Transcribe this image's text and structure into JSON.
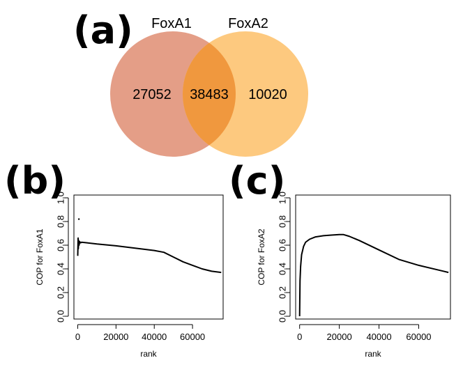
{
  "figure": {
    "panel_a_label": "(a)",
    "panel_b_label": "(b)",
    "panel_c_label": "(c)"
  },
  "chart_data": [
    {
      "type": "venn",
      "panel": "a",
      "sets": [
        {
          "name": "FoxA1",
          "only": "27052",
          "color": "#e49e87"
        },
        {
          "name": "FoxA2",
          "only": "10020",
          "color": "#fdc97f"
        }
      ],
      "intersection": "38483",
      "intersection_color": "#f0983e"
    },
    {
      "type": "line",
      "panel": "b",
      "title": "",
      "xlabel": "rank",
      "ylabel": "COP for FoxA1",
      "xlim": [
        -2000,
        76000
      ],
      "ylim": [
        0.0,
        1.0
      ],
      "xticks": [
        0,
        20000,
        40000,
        60000
      ],
      "yticks": [
        0.0,
        0.2,
        0.4,
        0.6,
        0.8,
        1.0
      ],
      "outlier_points": [
        [
          600,
          0.82
        ]
      ],
      "series": [
        {
          "name": "COP",
          "x": [
            0,
            200,
            300,
            500,
            700,
            1000,
            1500,
            2000,
            5000,
            10000,
            20000,
            30000,
            40000,
            45000,
            50000,
            55000,
            60000,
            65000,
            70000,
            75000
          ],
          "y": [
            0.51,
            0.66,
            0.57,
            0.64,
            0.6,
            0.63,
            0.62,
            0.625,
            0.62,
            0.61,
            0.595,
            0.575,
            0.555,
            0.54,
            0.5,
            0.46,
            0.43,
            0.4,
            0.38,
            0.37
          ]
        }
      ]
    },
    {
      "type": "line",
      "panel": "c",
      "title": "",
      "xlabel": "rank",
      "ylabel": "COP for FoxA2",
      "xlim": [
        -2000,
        76000
      ],
      "ylim": [
        0.0,
        1.0
      ],
      "xticks": [
        0,
        20000,
        40000,
        60000
      ],
      "yticks": [
        0.0,
        0.2,
        0.4,
        0.6,
        0.8,
        1.0
      ],
      "series": [
        {
          "name": "COP",
          "x": [
            0,
            200,
            500,
            1000,
            2000,
            3000,
            5000,
            8000,
            12000,
            16000,
            20000,
            22000,
            25000,
            30000,
            40000,
            50000,
            60000,
            70000,
            75000
          ],
          "y": [
            0.0,
            0.3,
            0.42,
            0.52,
            0.59,
            0.625,
            0.65,
            0.67,
            0.68,
            0.685,
            0.69,
            0.69,
            0.675,
            0.64,
            0.56,
            0.48,
            0.43,
            0.39,
            0.37
          ]
        }
      ]
    }
  ]
}
